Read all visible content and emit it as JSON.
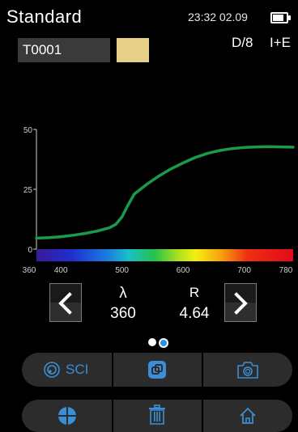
{
  "header": {
    "title": "Standard",
    "clock": "23:32 02.09",
    "battery_icon": "battery-icon"
  },
  "sample": {
    "name": "T0001",
    "swatch_color": "#e6cf86",
    "geometry": "D/8",
    "mode": "I+E"
  },
  "chart_data": {
    "type": "line",
    "title": "",
    "xlabel": "",
    "ylabel": "",
    "xlim": [
      360,
      780
    ],
    "ylim": [
      0,
      50
    ],
    "y_ticks": [
      "0",
      "25",
      "50"
    ],
    "x_ticks": [
      "360",
      "400",
      "500",
      "600",
      "700",
      "780"
    ],
    "x_tick_values": [
      360,
      400,
      500,
      600,
      700,
      780
    ],
    "series": [
      {
        "color": "#1a9a4a",
        "x": [
          360,
          380,
          400,
          420,
          440,
          460,
          480,
          490,
          500,
          510,
          520,
          540,
          560,
          580,
          600,
          620,
          640,
          660,
          680,
          700,
          720,
          740,
          760,
          780
        ],
        "y": [
          4.6,
          4.8,
          5.2,
          5.8,
          6.6,
          7.6,
          9.0,
          10.4,
          13.5,
          18.5,
          23.0,
          27.0,
          30.5,
          33.5,
          36.0,
          38.3,
          40.0,
          41.2,
          42.0,
          42.5,
          42.7,
          42.8,
          42.7,
          42.6
        ]
      }
    ],
    "spectrum_bar": true,
    "grid": false
  },
  "nav": {
    "lambda_label": "λ",
    "lambda_value": "360",
    "r_label": "R",
    "r_value": "4.64"
  },
  "toolbar": {
    "sci_label": "SCI",
    "accent_color": "#3a8fd6"
  }
}
